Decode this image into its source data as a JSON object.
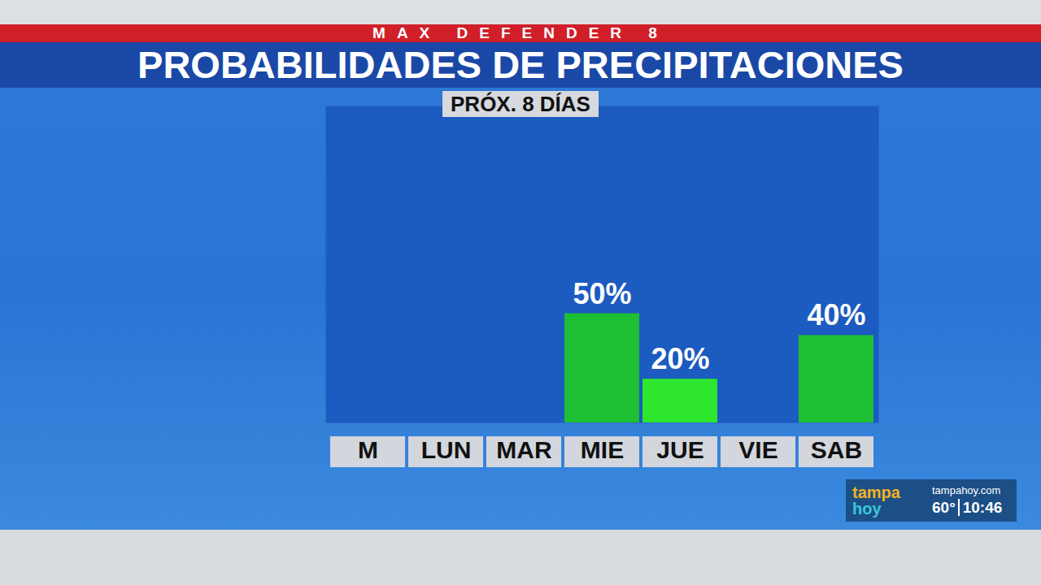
{
  "banner": "MAX DEFENDER 8",
  "chart_data": {
    "type": "bar",
    "title": "PROBABILIDADES DE PRECIPITACIONES",
    "subtitle": "PRÓX. 8 DÍAS",
    "categories": [
      "M",
      "LUN",
      "MAR",
      "MIE",
      "JUE",
      "VIE",
      "SAB"
    ],
    "values": [
      null,
      null,
      null,
      50,
      20,
      null,
      40
    ],
    "value_labels": [
      null,
      null,
      null,
      "50%",
      "20%",
      null,
      "40%"
    ],
    "colors": [
      null,
      null,
      null,
      "#1fbf33",
      "#2ee62e",
      null,
      "#1fbf33"
    ],
    "ylim": [
      0,
      145
    ],
    "data_labels": true,
    "tick_labels": "x",
    "grid": false
  },
  "station": {
    "logo": [
      "tampa",
      "hoy"
    ],
    "website": "tampahoy.com",
    "temperature": "60°",
    "time": "10:46"
  }
}
